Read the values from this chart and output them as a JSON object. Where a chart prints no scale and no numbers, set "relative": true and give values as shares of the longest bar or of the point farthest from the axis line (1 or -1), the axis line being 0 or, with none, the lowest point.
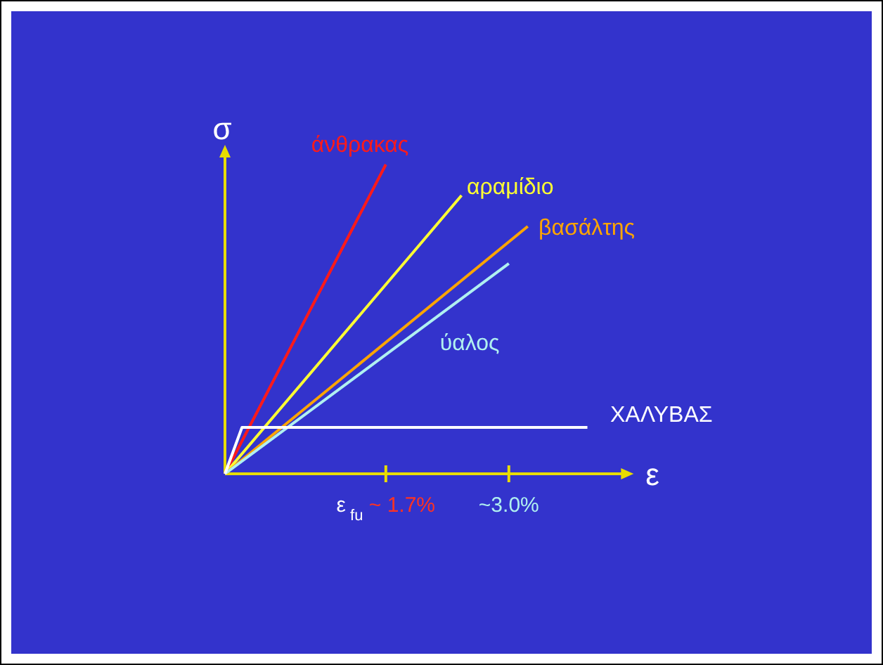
{
  "chart_data": {
    "type": "line",
    "relative": true,
    "xlabel": "ε",
    "ylabel": "σ",
    "xlim": [
      0,
      4.2
    ],
    "xticks": [
      {
        "value": 1.7,
        "label": "ε$_{fu}$ ~ 1.7%"
      },
      {
        "value": 3.0,
        "label": "~3.0%"
      }
    ],
    "series": [
      {
        "name": "άνθρακας",
        "color": "#ff1a1a",
        "x": [
          0,
          1.7
        ],
        "values": [
          0,
          1
        ]
      },
      {
        "name": "αραμίδιο",
        "color": "#ffff33",
        "x": [
          0,
          2.5
        ],
        "values": [
          0,
          0.9
        ]
      },
      {
        "name": "βασάλτης",
        "color": "#ffa500",
        "x": [
          0,
          3.2
        ],
        "values": [
          0,
          0.8
        ]
      },
      {
        "name": "ύαλος",
        "color": "#b0f0f0",
        "x": [
          0,
          3.0
        ],
        "values": [
          0,
          0.68
        ]
      },
      {
        "name": "ΧΑΛΥΒΑΣ",
        "color": "#ffffff",
        "x": [
          0,
          0.18,
          3.83
        ],
        "values": [
          0,
          0.15,
          0.15
        ]
      }
    ],
    "legend": false,
    "grid": false,
    "marker": "none",
    "line_style": "solid"
  }
}
